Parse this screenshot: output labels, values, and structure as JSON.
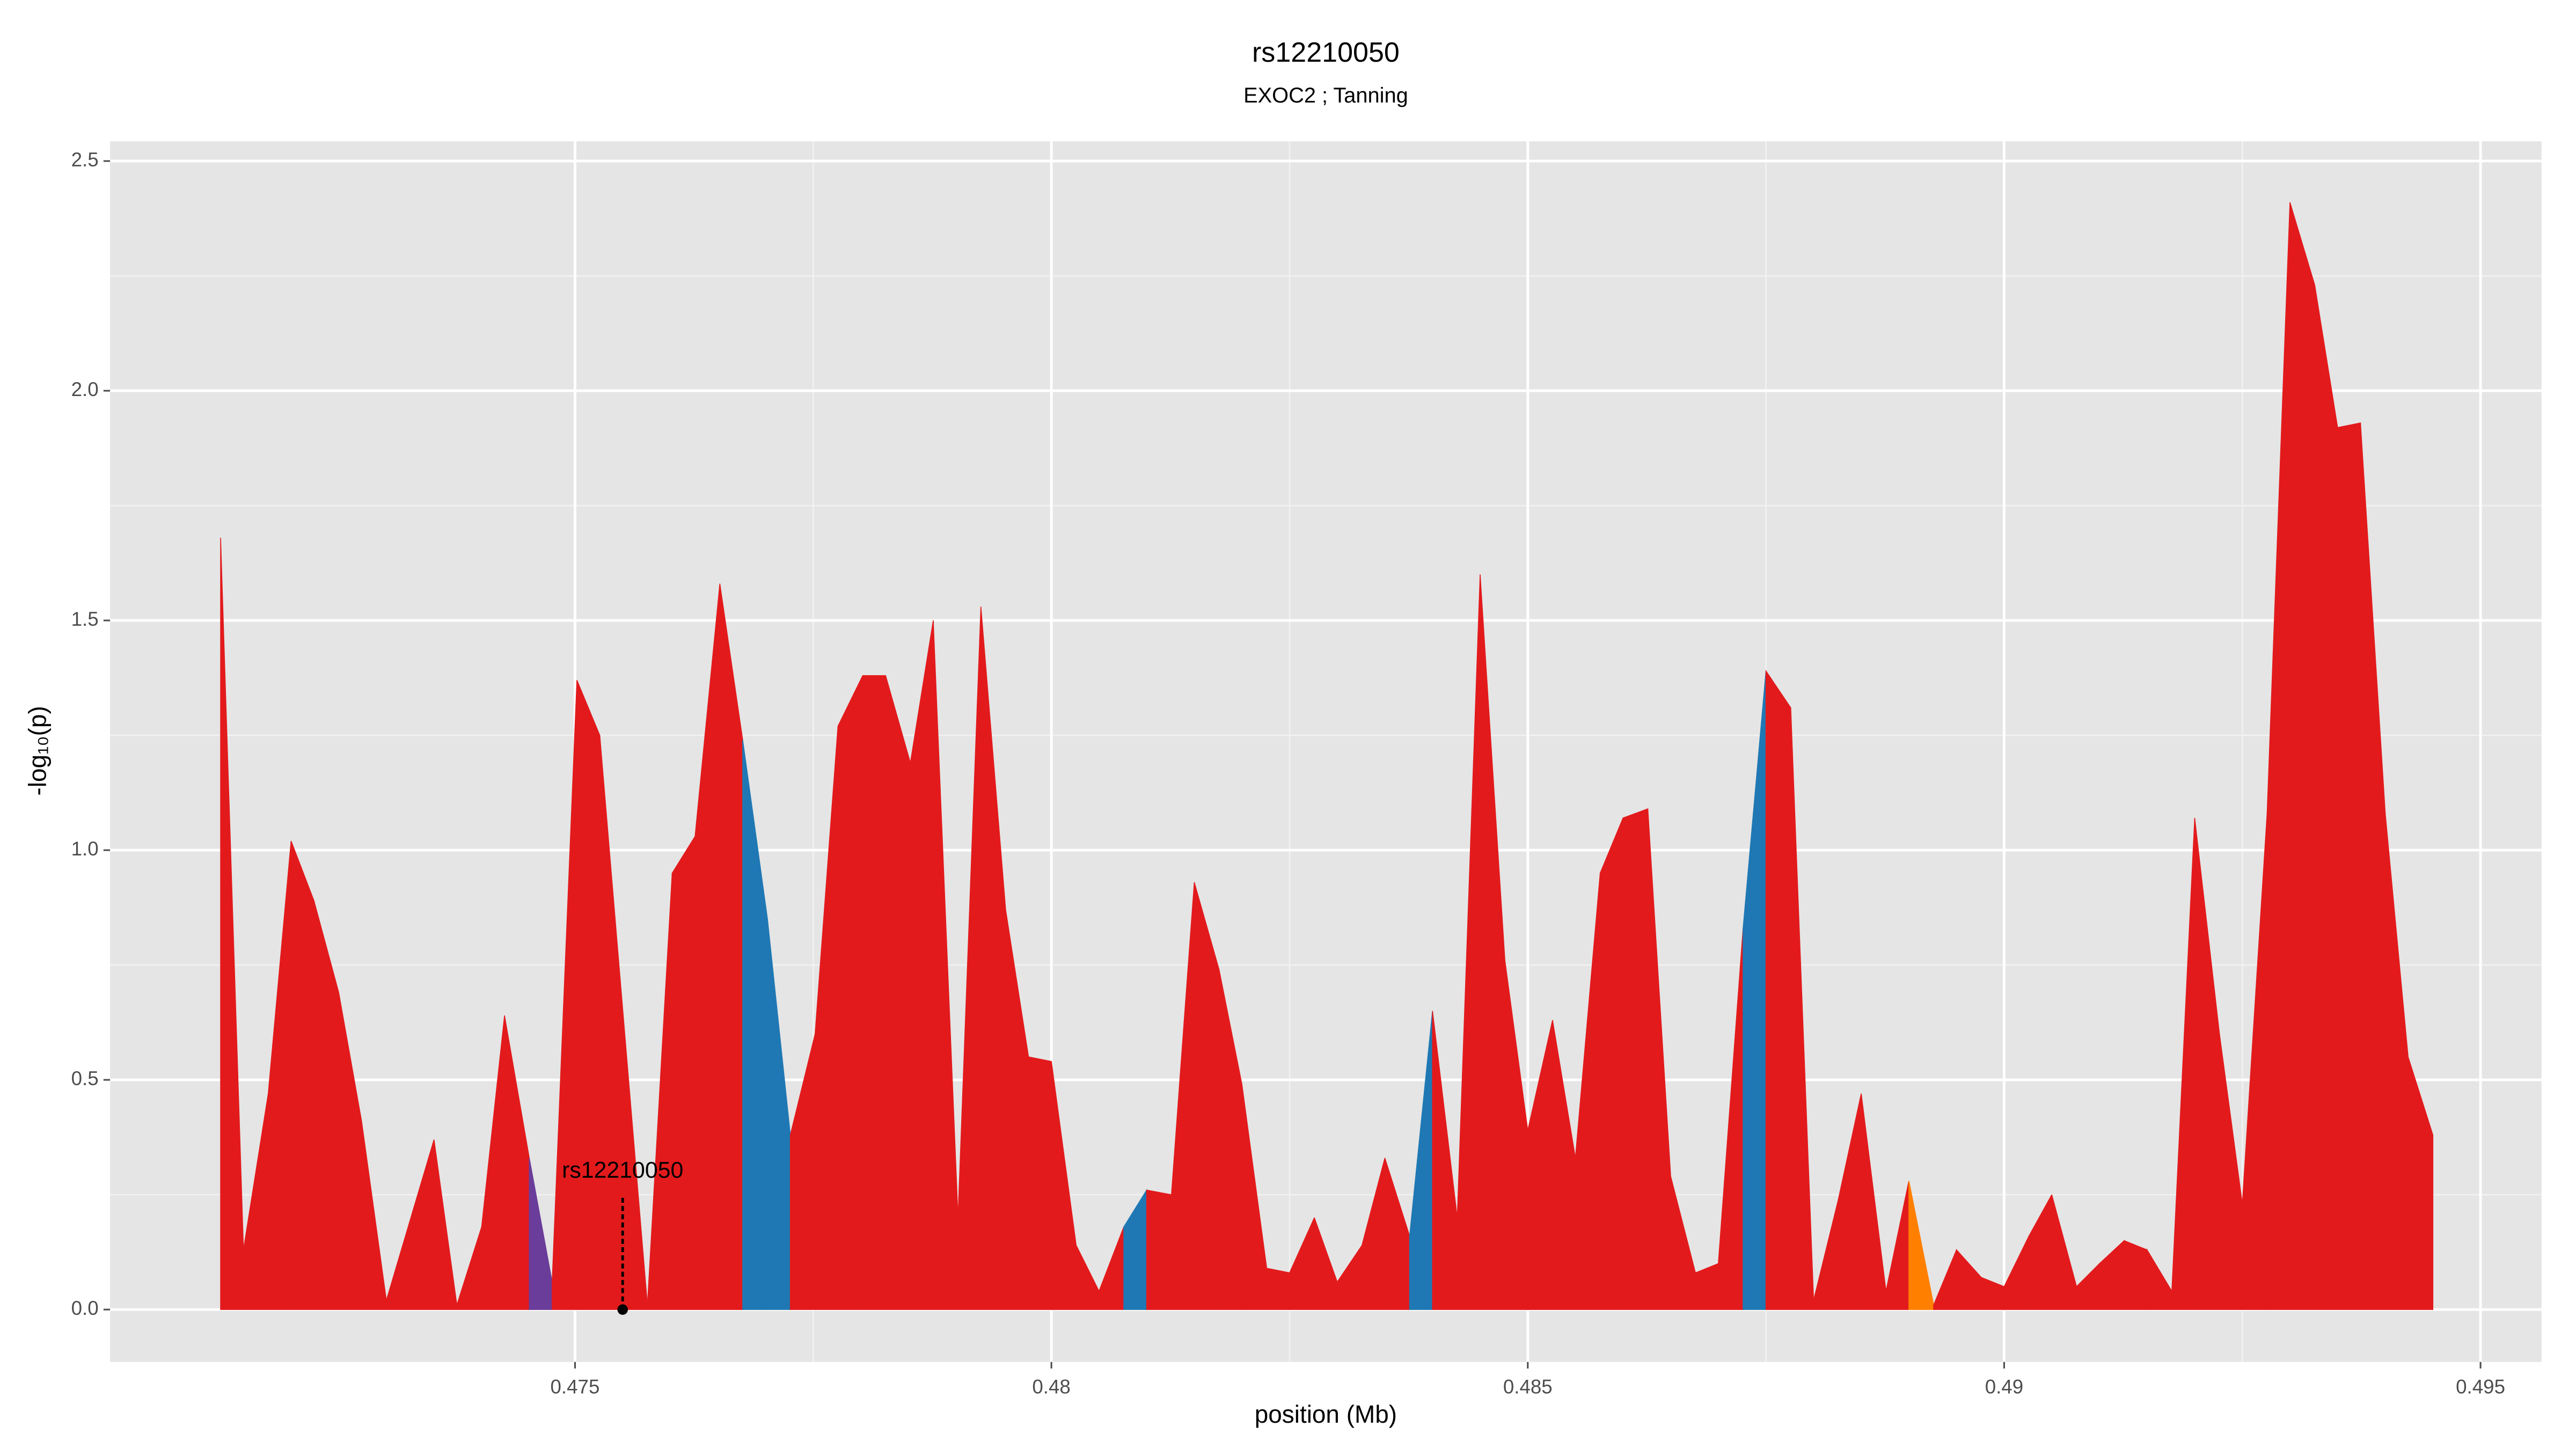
{
  "chart_data": {
    "type": "area",
    "title": "rs12210050",
    "subtitle": "EXOC2 ; Tanning",
    "xlabel": "position (Mb)",
    "ylabel": "-log₁₀(p)",
    "x": [
      0.47128,
      0.47152,
      0.47178,
      0.47202,
      0.47226,
      0.47252,
      0.47276,
      0.47302,
      0.47352,
      0.47376,
      0.47402,
      0.47426,
      0.47452,
      0.47476,
      0.47502,
      0.47526,
      0.47576,
      0.47602,
      0.47626,
      0.47652,
      0.47676,
      0.47702,
      0.47726,
      0.47752,
      0.47776,
      0.47802,
      0.47826,
      0.47852,
      0.47876,
      0.47902,
      0.47926,
      0.47952,
      0.47976,
      0.48,
      0.48026,
      0.4805,
      0.48076,
      0.481,
      0.48126,
      0.4815,
      0.48176,
      0.482,
      0.48226,
      0.4825,
      0.48276,
      0.483,
      0.48326,
      0.4835,
      0.48376,
      0.484,
      0.48426,
      0.4845,
      0.48476,
      0.485,
      0.48526,
      0.4855,
      0.48576,
      0.486,
      0.48626,
      0.4865,
      0.48676,
      0.487,
      0.48726,
      0.4875,
      0.48776,
      0.488,
      0.48826,
      0.4885,
      0.48876,
      0.489,
      0.48926,
      0.4895,
      0.48976,
      0.49,
      0.49026,
      0.4905,
      0.49076,
      0.491,
      0.49126,
      0.4915,
      0.49176,
      0.492,
      0.49226,
      0.4925,
      0.49276,
      0.493,
      0.49326,
      0.4935,
      0.49374,
      0.494,
      0.49424,
      0.4945
    ],
    "values": [
      1.68,
      0.13,
      0.47,
      1.02,
      0.89,
      0.69,
      0.41,
      0.02,
      0.37,
      0.01,
      0.18,
      0.64,
      0.33,
      0.06,
      1.37,
      1.25,
      0.01,
      0.95,
      1.03,
      1.58,
      1.24,
      0.85,
      0.38,
      0.6,
      1.27,
      1.38,
      1.38,
      1.19,
      1.5,
      0.2,
      1.53,
      0.87,
      0.55,
      0.54,
      0.14,
      0.04,
      0.18,
      0.26,
      0.25,
      0.93,
      0.74,
      0.49,
      0.09,
      0.08,
      0.2,
      0.06,
      0.14,
      0.33,
      0.16,
      0.65,
      0.2,
      1.6,
      0.76,
      0.39,
      0.63,
      0.33,
      0.95,
      1.07,
      1.09,
      0.29,
      0.08,
      0.1,
      0.83,
      1.39,
      1.31,
      0.02,
      0.24,
      0.47,
      0.04,
      0.28,
      0.01,
      0.13,
      0.07,
      0.05,
      0.16,
      0.25,
      0.05,
      0.1,
      0.15,
      0.13,
      0.04,
      1.07,
      0.6,
      0.23,
      1.08,
      2.41,
      2.23,
      1.92,
      1.93,
      1.08,
      0.55,
      0.38
    ],
    "segment_colors": [
      "#e31a1c",
      "#e31a1c",
      "#e31a1c",
      "#e31a1c",
      "#e31a1c",
      "#e31a1c",
      "#e31a1c",
      "#e31a1c",
      "#e31a1c",
      "#e31a1c",
      "#e31a1c",
      "#e31a1c",
      "#6a3d9a",
      "#e31a1c",
      "#e31a1c",
      "#e31a1c",
      "#e31a1c",
      "#e31a1c",
      "#e31a1c",
      "#e31a1c",
      "#1f78b4",
      "#1f78b4",
      "#e31a1c",
      "#e31a1c",
      "#e31a1c",
      "#e31a1c",
      "#e31a1c",
      "#e31a1c",
      "#e31a1c",
      "#e31a1c",
      "#e31a1c",
      "#e31a1c",
      "#e31a1c",
      "#e31a1c",
      "#e31a1c",
      "#e31a1c",
      "#1f78b4",
      "#e31a1c",
      "#e31a1c",
      "#e31a1c",
      "#e31a1c",
      "#e31a1c",
      "#e31a1c",
      "#e31a1c",
      "#e31a1c",
      "#e31a1c",
      "#e31a1c",
      "#e31a1c",
      "#1f78b4",
      "#e31a1c",
      "#e31a1c",
      "#e31a1c",
      "#e31a1c",
      "#e31a1c",
      "#e31a1c",
      "#e31a1c",
      "#e31a1c",
      "#e31a1c",
      "#e31a1c",
      "#e31a1c",
      "#e31a1c",
      "#e31a1c",
      "#1f78b4",
      "#e31a1c",
      "#e31a1c",
      "#e31a1c",
      "#e31a1c",
      "#e31a1c",
      "#e31a1c",
      "#ff7f00",
      "#e31a1c",
      "#e31a1c",
      "#e31a1c",
      "#e31a1c",
      "#e31a1c",
      "#e31a1c",
      "#e31a1c",
      "#e31a1c",
      "#e31a1c",
      "#e31a1c",
      "#e31a1c",
      "#e31a1c",
      "#e31a1c",
      "#e31a1c",
      "#e31a1c",
      "#e31a1c",
      "#e31a1c",
      "#e31a1c",
      "#e31a1c",
      "#e31a1c",
      "#e31a1c"
    ],
    "annotation": {
      "text": "rs12210050",
      "x": 0.4755,
      "y": 0
    },
    "xlim": [
      0.47012,
      0.49564
    ],
    "ylim": [
      -0.114,
      2.543
    ],
    "xticks": [
      0.475,
      0.48,
      0.485,
      0.49,
      0.495
    ],
    "yticks": [
      {
        "value": 0,
        "label": "0.0"
      },
      0.5,
      {
        "value": 1,
        "label": "1.0"
      },
      1.5,
      {
        "value": 2,
        "label": "2.0"
      },
      2.5
    ],
    "grid": true
  }
}
